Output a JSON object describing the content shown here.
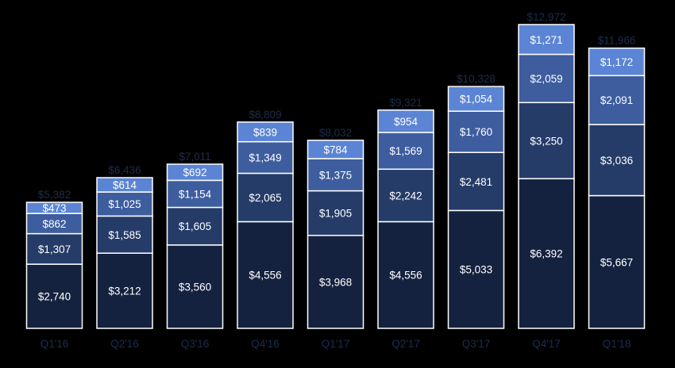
{
  "chart_data": {
    "type": "bar",
    "stacked": true,
    "title": "",
    "xlabel": "",
    "ylabel": "",
    "ylim": [
      0,
      12972
    ],
    "grid": false,
    "legend": "none",
    "categories": [
      "Q1'16",
      "Q2'16",
      "Q3'16",
      "Q4'16",
      "Q1'17",
      "Q2'17",
      "Q3'17",
      "Q4'17",
      "Q1'18"
    ],
    "totals": [
      5382,
      6436,
      7011,
      8809,
      8032,
      9321,
      10328,
      12972,
      11966
    ],
    "total_labels": [
      "$5,382",
      "$6,436",
      "$7,011",
      "$8,809",
      "$8,032",
      "$9,321",
      "$10,328",
      "$12,972",
      "$11,966"
    ],
    "series": [
      {
        "values": [
          2740,
          3212,
          3560,
          4556,
          3968,
          4556,
          5033,
          6392,
          5667
        ],
        "labels": [
          "$2,740",
          "$3,212",
          "$3,560",
          "$4,556",
          "$3,968",
          "$4,556",
          "$5,033",
          "$6,392",
          "$5,667"
        ],
        "color": "#15223f"
      },
      {
        "values": [
          1307,
          1585,
          1605,
          2065,
          1905,
          2242,
          2481,
          3250,
          3036
        ],
        "labels": [
          "$1,307",
          "$1,585",
          "$1,605",
          "$2,065",
          "$1,905",
          "$2,242",
          "$2,481",
          "$3,250",
          "$3,036"
        ],
        "color": "#253b68"
      },
      {
        "values": [
          862,
          1025,
          1154,
          1349,
          1375,
          1569,
          1760,
          2059,
          2091
        ],
        "labels": [
          "$862",
          "$1,025",
          "$1,154",
          "$1,349",
          "$1,375",
          "$1,569",
          "$1,760",
          "$2,059",
          "$2,091"
        ],
        "color": "#3d5d9e"
      },
      {
        "values": [
          473,
          614,
          692,
          839,
          784,
          954,
          1054,
          1271,
          1172
        ],
        "labels": [
          "$473",
          "$614",
          "$692",
          "$839",
          "$784",
          "$954",
          "$1,054",
          "$1,271",
          "$1,172"
        ],
        "color": "#5b84d4"
      }
    ]
  }
}
